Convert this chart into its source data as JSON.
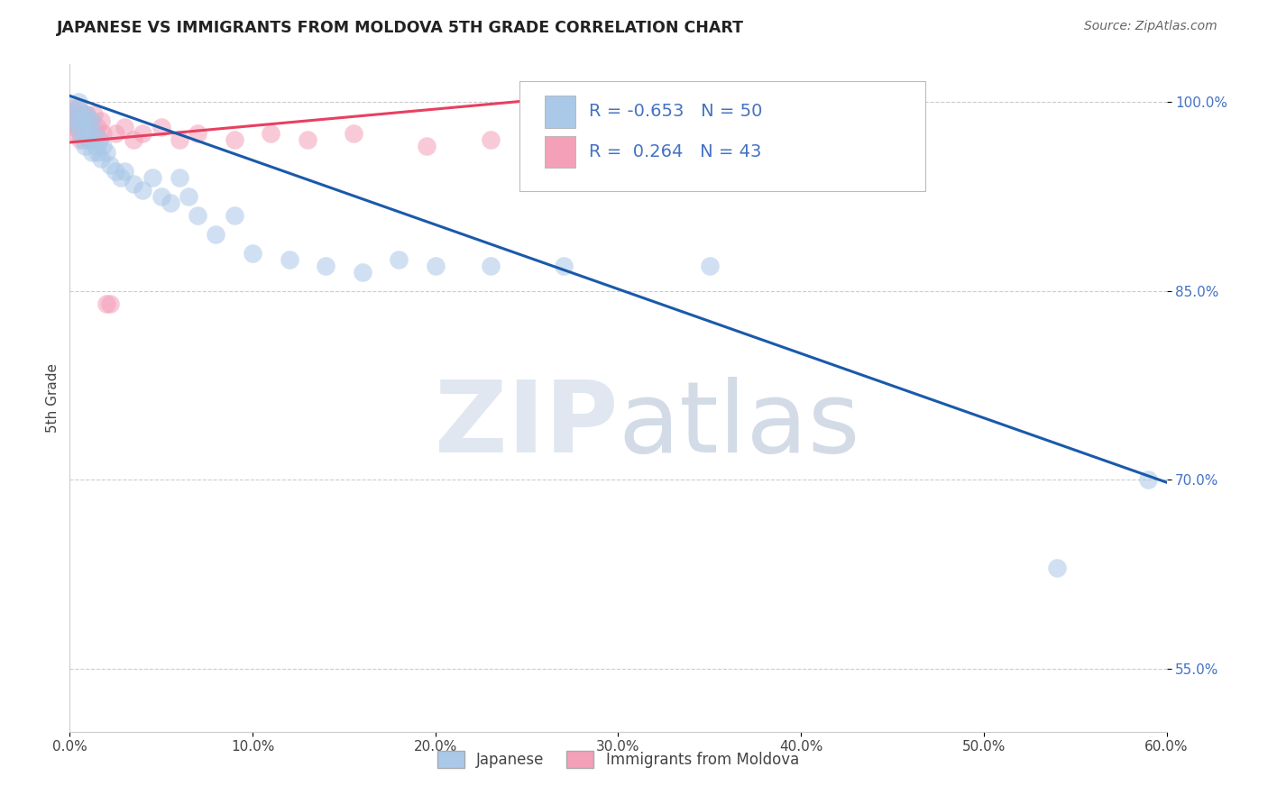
{
  "title": "JAPANESE VS IMMIGRANTS FROM MOLDOVA 5TH GRADE CORRELATION CHART",
  "source": "Source: ZipAtlas.com",
  "xlabel_label": "Japanese",
  "ylabel_label": "Immigrants from Moldova",
  "ylabel": "5th Grade",
  "xlim": [
    0.0,
    0.6
  ],
  "ylim": [
    0.5,
    1.03
  ],
  "xtick_vals": [
    0.0,
    0.1,
    0.2,
    0.3,
    0.4,
    0.5,
    0.6
  ],
  "xtick_labels": [
    "0.0%",
    "10.0%",
    "20.0%",
    "30.0%",
    "40.0%",
    "50.0%",
    "60.0%"
  ],
  "ytick_vals": [
    0.55,
    0.7,
    0.85,
    1.0
  ],
  "ytick_labels": [
    "55.0%",
    "70.0%",
    "85.0%",
    "100.0%"
  ],
  "blue_R": -0.653,
  "blue_N": 50,
  "pink_R": 0.264,
  "pink_N": 43,
  "blue_color": "#aac8e8",
  "pink_color": "#f4a0b8",
  "blue_line_color": "#1a5aaa",
  "pink_line_color": "#e84060",
  "watermark_zip": "ZIP",
  "watermark_atlas": "atlas",
  "blue_scatter_x": [
    0.002,
    0.003,
    0.004,
    0.005,
    0.005,
    0.006,
    0.006,
    0.007,
    0.007,
    0.008,
    0.008,
    0.009,
    0.009,
    0.01,
    0.01,
    0.011,
    0.012,
    0.012,
    0.013,
    0.014,
    0.015,
    0.016,
    0.017,
    0.018,
    0.02,
    0.022,
    0.025,
    0.028,
    0.03,
    0.035,
    0.04,
    0.045,
    0.05,
    0.055,
    0.06,
    0.065,
    0.07,
    0.08,
    0.09,
    0.1,
    0.12,
    0.14,
    0.16,
    0.18,
    0.2,
    0.23,
    0.27,
    0.35,
    0.54,
    0.59
  ],
  "blue_scatter_y": [
    0.99,
    0.985,
    0.995,
    0.98,
    1.0,
    0.985,
    0.975,
    0.99,
    0.97,
    0.985,
    0.965,
    0.99,
    0.975,
    0.985,
    0.97,
    0.975,
    0.985,
    0.96,
    0.975,
    0.965,
    0.96,
    0.97,
    0.955,
    0.965,
    0.96,
    0.95,
    0.945,
    0.94,
    0.945,
    0.935,
    0.93,
    0.94,
    0.925,
    0.92,
    0.94,
    0.925,
    0.91,
    0.895,
    0.91,
    0.88,
    0.875,
    0.87,
    0.865,
    0.875,
    0.87,
    0.87,
    0.87,
    0.87,
    0.63,
    0.7
  ],
  "pink_scatter_x": [
    0.001,
    0.002,
    0.002,
    0.003,
    0.003,
    0.004,
    0.004,
    0.005,
    0.005,
    0.006,
    0.006,
    0.007,
    0.007,
    0.008,
    0.008,
    0.009,
    0.009,
    0.01,
    0.01,
    0.011,
    0.012,
    0.013,
    0.014,
    0.015,
    0.016,
    0.017,
    0.018,
    0.02,
    0.022,
    0.025,
    0.03,
    0.035,
    0.04,
    0.05,
    0.06,
    0.07,
    0.09,
    0.11,
    0.13,
    0.155,
    0.195,
    0.23,
    0.27
  ],
  "pink_scatter_y": [
    0.99,
    0.985,
    0.995,
    0.98,
    0.99,
    0.975,
    0.985,
    0.995,
    0.98,
    0.99,
    0.97,
    0.985,
    0.975,
    0.99,
    0.975,
    0.985,
    0.99,
    0.98,
    0.97,
    0.985,
    0.975,
    0.99,
    0.975,
    0.98,
    0.97,
    0.985,
    0.975,
    0.84,
    0.84,
    0.975,
    0.98,
    0.97,
    0.975,
    0.98,
    0.97,
    0.975,
    0.97,
    0.975,
    0.97,
    0.975,
    0.965,
    0.97,
    0.975
  ],
  "blue_line_x": [
    0.0,
    0.6
  ],
  "blue_line_y": [
    1.005,
    0.698
  ],
  "pink_line_x": [
    0.0,
    0.28
  ],
  "pink_line_y": [
    0.968,
    1.005
  ]
}
